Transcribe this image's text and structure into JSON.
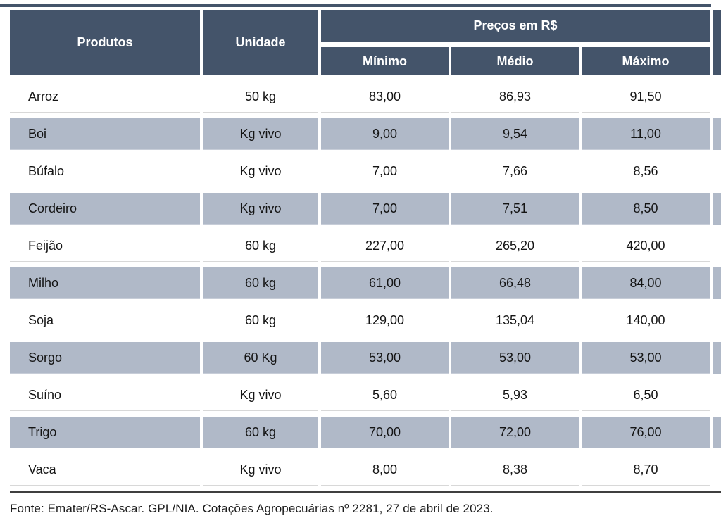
{
  "table": {
    "header": {
      "produtos": "Produtos",
      "unidade": "Unidade",
      "precos_group": "Preços em R$",
      "minimo": "Mínimo",
      "medio": "Médio",
      "maximo": "Máximo"
    },
    "rows": [
      {
        "produto": "Arroz",
        "unidade": "50 kg",
        "minimo": "83,00",
        "medio": "86,93",
        "maximo": "91,50"
      },
      {
        "produto": "Boi",
        "unidade": "Kg vivo",
        "minimo": "9,00",
        "medio": "9,54",
        "maximo": "11,00"
      },
      {
        "produto": "Búfalo",
        "unidade": "Kg vivo",
        "minimo": "7,00",
        "medio": "7,66",
        "maximo": "8,56"
      },
      {
        "produto": "Cordeiro",
        "unidade": "Kg vivo",
        "minimo": "7,00",
        "medio": "7,51",
        "maximo": "8,50"
      },
      {
        "produto": "Feijão",
        "unidade": "60 kg",
        "minimo": "227,00",
        "medio": "265,20",
        "maximo": "420,00"
      },
      {
        "produto": "Milho",
        "unidade": "60 kg",
        "minimo": "61,00",
        "medio": "66,48",
        "maximo": "84,00"
      },
      {
        "produto": "Soja",
        "unidade": "60 kg",
        "minimo": "129,00",
        "medio": "135,04",
        "maximo": "140,00"
      },
      {
        "produto": "Sorgo",
        "unidade": "60 Kg",
        "minimo": "53,00",
        "medio": "53,00",
        "maximo": "53,00"
      },
      {
        "produto": "Suíno",
        "unidade": "Kg vivo",
        "minimo": "5,60",
        "medio": "5,93",
        "maximo": "6,50"
      },
      {
        "produto": "Trigo",
        "unidade": "60 kg",
        "minimo": "70,00",
        "medio": "72,00",
        "maximo": "76,00"
      },
      {
        "produto": "Vaca",
        "unidade": "Kg vivo",
        "minimo": "8,00",
        "medio": "8,38",
        "maximo": "8,70"
      }
    ]
  },
  "footer": {
    "source": "Fonte: Emater/RS-Ascar. GPL/NIA. Cotações Agropecuárias nº 2281, 27 de abril de 2023."
  },
  "colors": {
    "header_bg": "#44546A",
    "band_bg": "#B0B9C8",
    "rule_color": "#3F3F3F",
    "hairline": "#D8D8D8"
  },
  "chart_data": {
    "type": "table",
    "title": "Preços em R$",
    "columns": [
      "Produtos",
      "Unidade",
      "Mínimo",
      "Médio",
      "Máximo"
    ],
    "rows": [
      [
        "Arroz",
        "50 kg",
        83.0,
        86.93,
        91.5
      ],
      [
        "Boi",
        "Kg vivo",
        9.0,
        9.54,
        11.0
      ],
      [
        "Búfalo",
        "Kg vivo",
        7.0,
        7.66,
        8.56
      ],
      [
        "Cordeiro",
        "Kg vivo",
        7.0,
        7.51,
        8.5
      ],
      [
        "Feijão",
        "60 kg",
        227.0,
        265.2,
        420.0
      ],
      [
        "Milho",
        "60 kg",
        61.0,
        66.48,
        84.0
      ],
      [
        "Soja",
        "60 kg",
        129.0,
        135.04,
        140.0
      ],
      [
        "Sorgo",
        "60 Kg",
        53.0,
        53.0,
        53.0
      ],
      [
        "Suíno",
        "Kg vivo",
        5.6,
        5.93,
        6.5
      ],
      [
        "Trigo",
        "60 kg",
        70.0,
        72.0,
        76.0
      ],
      [
        "Vaca",
        "Kg vivo",
        8.0,
        8.38,
        8.7
      ]
    ],
    "currency": "BRL",
    "source": "Fonte: Emater/RS-Ascar. GPL/NIA. Cotações Agropecuárias nº 2281, 27 de abril de 2023.",
    "layout": {
      "banded_rows": true,
      "header_spans_two_rows": true,
      "grid": "white gaps between cells"
    }
  }
}
